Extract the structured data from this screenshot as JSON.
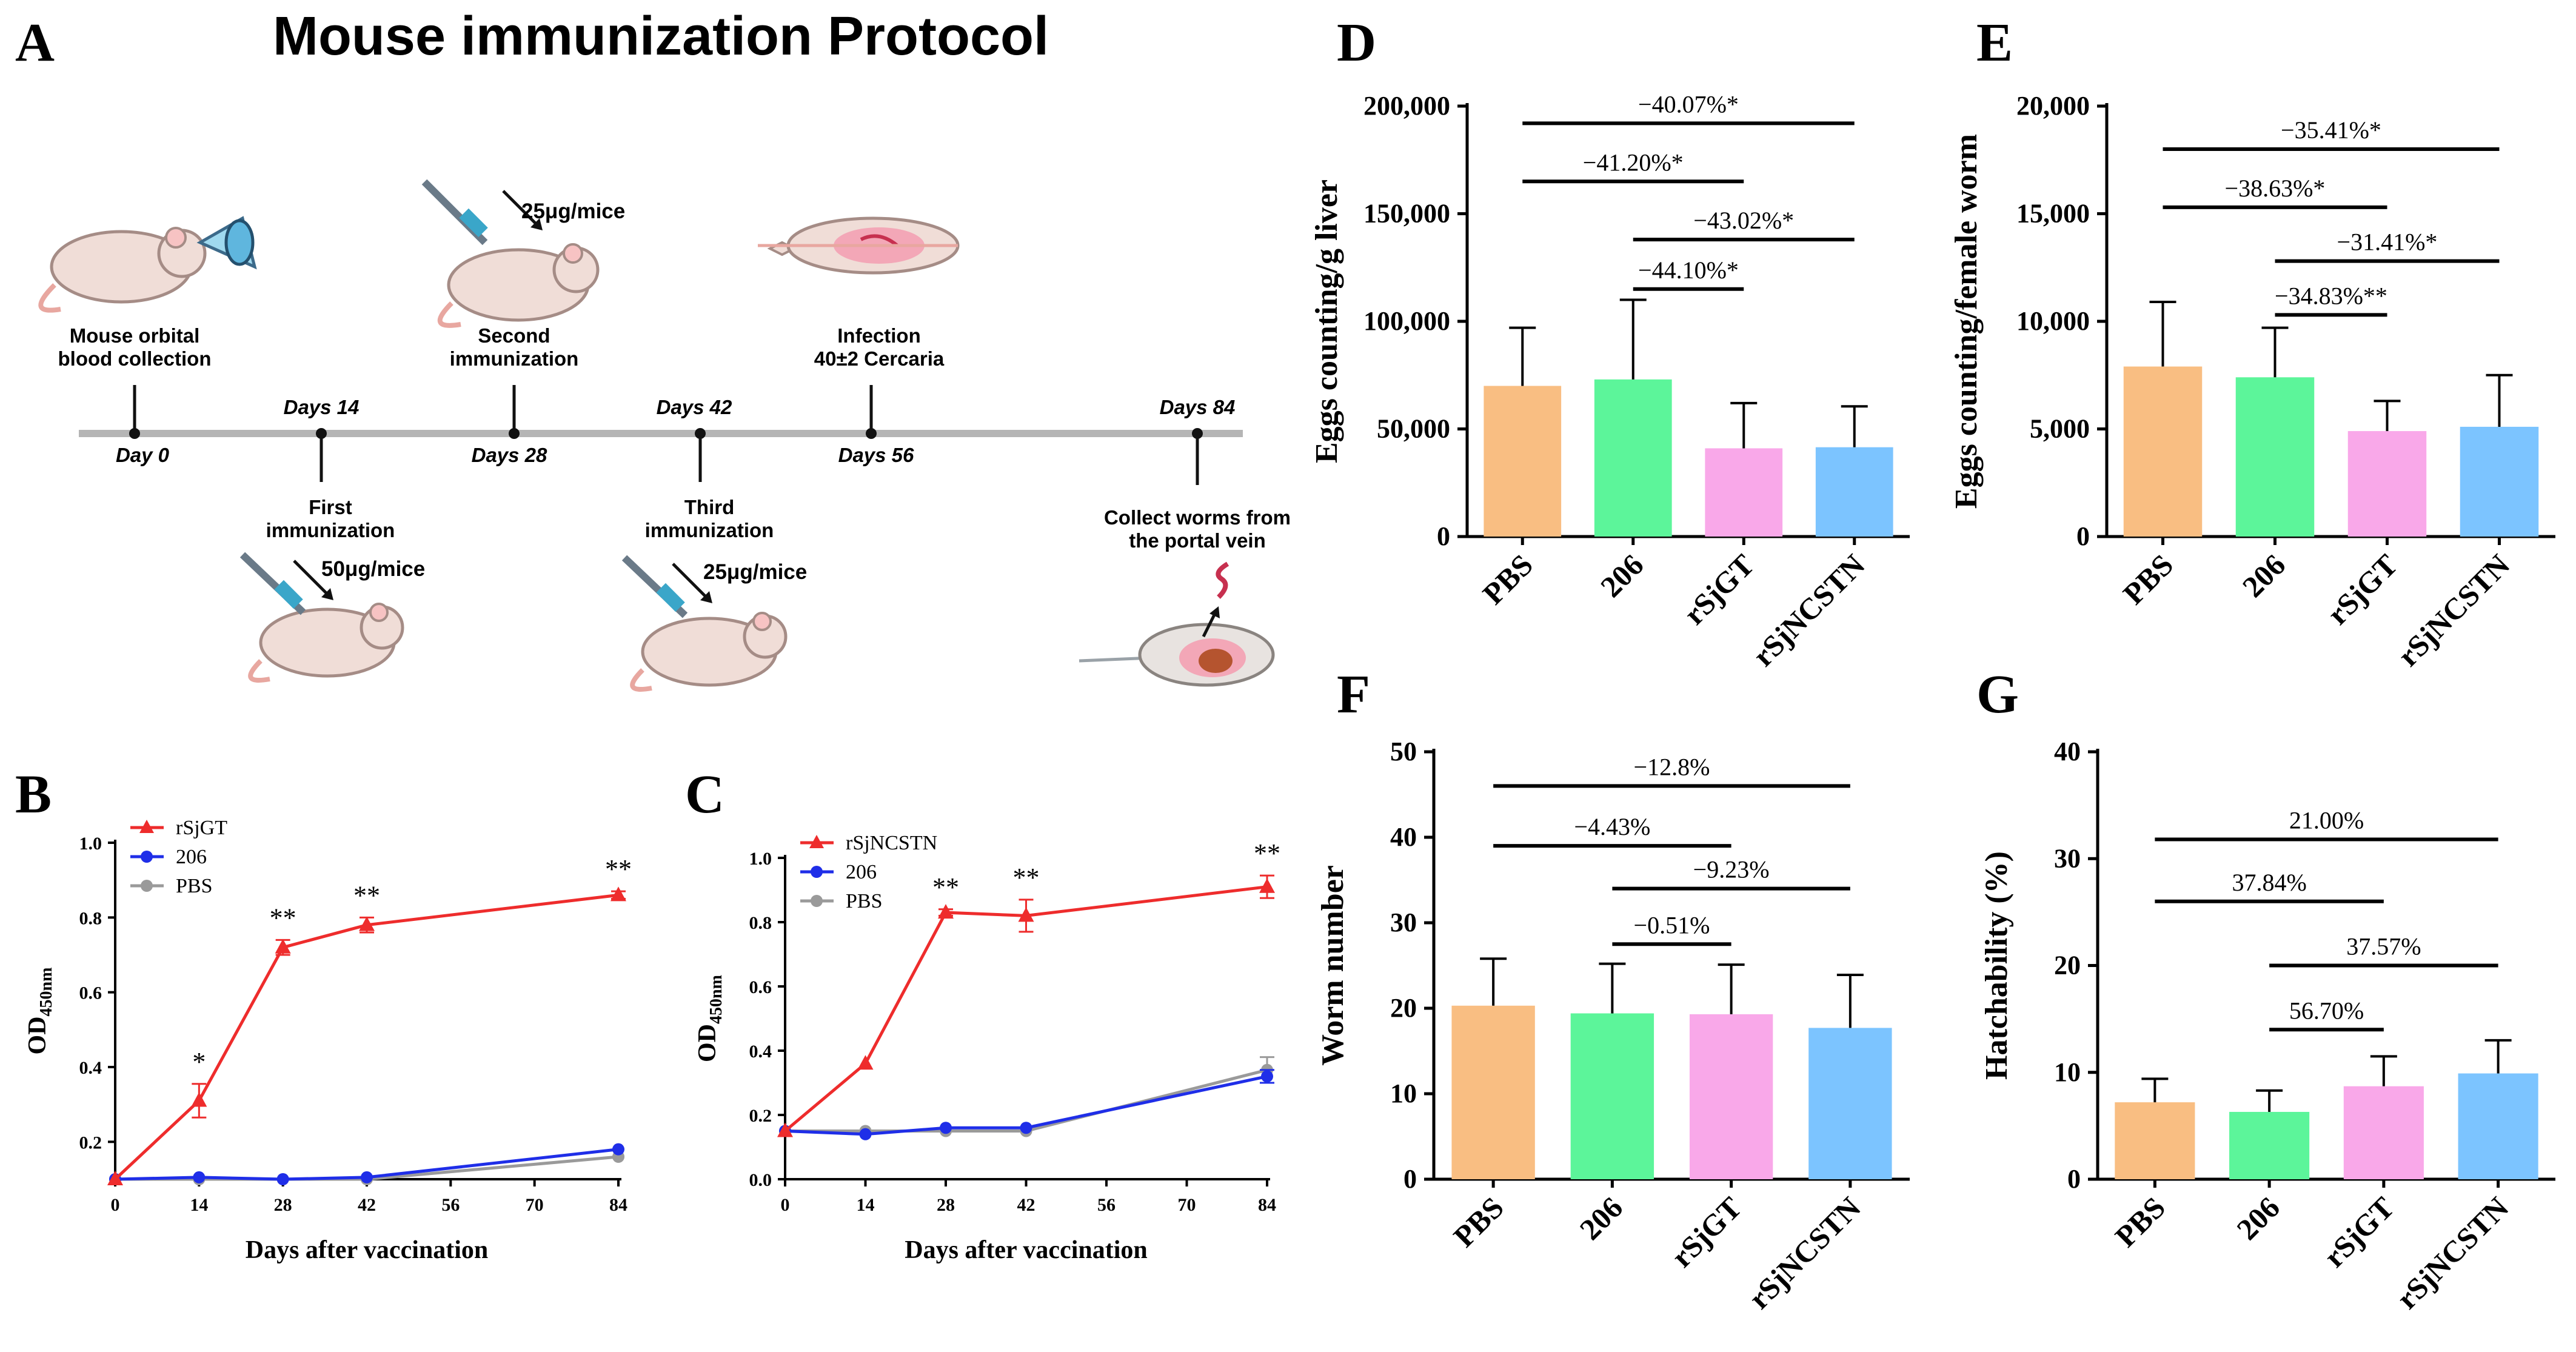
{
  "panels": {
    "A": {
      "label": "A",
      "title": "Mouse immunization Protocol",
      "timeline": {
        "ticks": [
          "Day 0",
          "Days 14",
          "Days 28",
          "Days 42",
          "Days 56",
          "Days 84"
        ],
        "events": [
          {
            "day": "Day 0",
            "text": [
              "Mouse orbital",
              "blood collection"
            ]
          },
          {
            "day": "Days 14",
            "text": [
              "First",
              "immunization"
            ],
            "dose": "50μg/mice"
          },
          {
            "day": "Days 28",
            "text": [
              "Second",
              "immunization"
            ],
            "dose": "25μg/mice"
          },
          {
            "day": "Days 42",
            "text": [
              "Third",
              "immunization"
            ],
            "dose": "25μg/mice"
          },
          {
            "day": "Days 56",
            "text": [
              "Infection",
              "40±2 Cercaria"
            ]
          },
          {
            "day": "Days 84",
            "text": [
              "Collect worms from",
              "the portal vein"
            ]
          }
        ]
      }
    }
  },
  "colors": {
    "red": "#ee2c2c",
    "blue": "#1f2ee8",
    "gray": "#9a9a9a",
    "orange": "#f9be82",
    "green": "#5cf59a",
    "pink": "#f9a8e9",
    "lightblue": "#7cc4ff"
  },
  "chart_data": [
    {
      "panel": "B",
      "type": "line",
      "xlabel": "Days after vaccination",
      "ylabel": "OD450nm",
      "x": [
        0,
        14,
        28,
        42,
        84
      ],
      "xticks": [
        0,
        14,
        28,
        42,
        56,
        70,
        84
      ],
      "yticks": [
        0.2,
        0.4,
        0.6,
        0.8,
        1.0
      ],
      "ylim": [
        0.1,
        1.0
      ],
      "series": [
        {
          "name": "rSjGT",
          "color": "red",
          "marker": "triangle",
          "values": [
            0.1,
            0.31,
            0.72,
            0.78,
            0.86
          ],
          "err": [
            0,
            0.045,
            0.02,
            0.02,
            0.01
          ]
        },
        {
          "name": "206",
          "color": "blue",
          "marker": "circle",
          "values": [
            0.1,
            0.105,
            0.1,
            0.105,
            0.18
          ],
          "err": [
            0,
            0,
            0,
            0,
            0
          ]
        },
        {
          "name": "PBS",
          "color": "gray",
          "marker": "circle",
          "values": [
            0.1,
            0.1,
            0.1,
            0.1,
            0.16
          ],
          "err": [
            0,
            0,
            0,
            0,
            0
          ]
        }
      ],
      "annotations": [
        {
          "x": 14,
          "text": "*"
        },
        {
          "x": 28,
          "text": "**"
        },
        {
          "x": 42,
          "text": "**"
        },
        {
          "x": 84,
          "text": "**"
        }
      ]
    },
    {
      "panel": "C",
      "type": "line",
      "xlabel": "Days after vaccination",
      "ylabel": "OD450nm",
      "x": [
        0,
        14,
        28,
        42,
        84
      ],
      "xticks": [
        0,
        14,
        28,
        42,
        56,
        70,
        84
      ],
      "yticks": [
        0.0,
        0.2,
        0.4,
        0.6,
        0.8,
        1.0
      ],
      "ylim": [
        0.0,
        1.0
      ],
      "series": [
        {
          "name": "rSjNCSTN",
          "color": "red",
          "marker": "triangle",
          "values": [
            0.15,
            0.36,
            0.83,
            0.82,
            0.91
          ],
          "err": [
            0,
            0,
            0.01,
            0.05,
            0.035
          ]
        },
        {
          "name": "206",
          "color": "blue",
          "marker": "circle",
          "values": [
            0.15,
            0.14,
            0.16,
            0.16,
            0.32
          ],
          "err": [
            0,
            0,
            0,
            0,
            0.02
          ]
        },
        {
          "name": "PBS",
          "color": "gray",
          "marker": "circle",
          "values": [
            0.15,
            0.15,
            0.15,
            0.15,
            0.34
          ],
          "err": [
            0,
            0,
            0,
            0,
            0.04
          ]
        }
      ],
      "annotations": [
        {
          "x": 28,
          "text": "**"
        },
        {
          "x": 42,
          "text": "**"
        },
        {
          "x": 84,
          "text": "**"
        }
      ]
    },
    {
      "panel": "D",
      "type": "bar",
      "ylabel": "Eggs counting/g liver",
      "categories": [
        "PBS",
        "206",
        "rSjGT",
        "rSjNCSTN"
      ],
      "values": [
        70000,
        73000,
        41000,
        41500
      ],
      "errors": [
        27000,
        37000,
        21000,
        19000
      ],
      "bar_colors": [
        "orange",
        "green",
        "pink",
        "lightblue"
      ],
      "yticks": [
        0,
        50000,
        100000,
        150000,
        200000
      ],
      "yticklabels": [
        "0",
        "50,000",
        "100,000",
        "150,000",
        "200,000"
      ],
      "ylim": [
        0,
        200000
      ],
      "brackets": [
        {
          "from": 0,
          "to": 3,
          "text": "−40.07%*",
          "y": 192000
        },
        {
          "from": 0,
          "to": 2,
          "text": "−41.20%*",
          "y": 165000
        },
        {
          "from": 1,
          "to": 3,
          "text": "−43.02%*",
          "y": 138000
        },
        {
          "from": 1,
          "to": 2,
          "text": "−44.10%*",
          "y": 115000
        }
      ]
    },
    {
      "panel": "E",
      "type": "bar",
      "ylabel": "Eggs counting/female worm",
      "categories": [
        "PBS",
        "206",
        "rSjGT",
        "rSjNCSTN"
      ],
      "values": [
        7900,
        7400,
        4900,
        5100
      ],
      "errors": [
        3000,
        2300,
        1400,
        2400
      ],
      "bar_colors": [
        "orange",
        "green",
        "pink",
        "lightblue"
      ],
      "yticks": [
        0,
        5000,
        10000,
        15000,
        20000
      ],
      "yticklabels": [
        "0",
        "5,000",
        "10,000",
        "15,000",
        "20,000"
      ],
      "ylim": [
        0,
        20000
      ],
      "brackets": [
        {
          "from": 0,
          "to": 3,
          "text": "−35.41%*",
          "y": 18000
        },
        {
          "from": 0,
          "to": 2,
          "text": "−38.63%*",
          "y": 15300
        },
        {
          "from": 1,
          "to": 3,
          "text": "−31.41%*",
          "y": 12800
        },
        {
          "from": 1,
          "to": 2,
          "text": "−34.83%**",
          "y": 10300
        }
      ]
    },
    {
      "panel": "F",
      "type": "bar",
      "ylabel": "Worm number",
      "categories": [
        "PBS",
        "206",
        "rSjGT",
        "rSjNCSTN"
      ],
      "values": [
        20.3,
        19.4,
        19.3,
        17.7
      ],
      "errors": [
        5.5,
        5.8,
        5.8,
        6.2
      ],
      "bar_colors": [
        "orange",
        "green",
        "pink",
        "lightblue"
      ],
      "yticks": [
        0,
        10,
        20,
        30,
        40,
        50
      ],
      "yticklabels": [
        "0",
        "10",
        "20",
        "30",
        "40",
        "50"
      ],
      "ylim": [
        0,
        50
      ],
      "brackets": [
        {
          "from": 0,
          "to": 3,
          "text": "−12.8%",
          "y": 46
        },
        {
          "from": 0,
          "to": 2,
          "text": "−4.43%",
          "y": 39
        },
        {
          "from": 1,
          "to": 3,
          "text": "−9.23%",
          "y": 34
        },
        {
          "from": 1,
          "to": 2,
          "text": "−0.51%",
          "y": 27.5
        }
      ]
    },
    {
      "panel": "G",
      "type": "bar",
      "ylabel": "Hatchability (%)",
      "categories": [
        "PBS",
        "206",
        "rSjGT",
        "rSjNCSTN"
      ],
      "values": [
        7.2,
        6.3,
        8.7,
        9.9
      ],
      "errors": [
        2.2,
        2.0,
        2.8,
        3.1
      ],
      "bar_colors": [
        "orange",
        "green",
        "pink",
        "lightblue"
      ],
      "yticks": [
        0,
        10,
        20,
        30,
        40
      ],
      "yticklabels": [
        "0",
        "10",
        "20",
        "30",
        "40"
      ],
      "ylim": [
        0,
        40
      ],
      "brackets": [
        {
          "from": 0,
          "to": 3,
          "text": "21.00%",
          "y": 31.8
        },
        {
          "from": 0,
          "to": 2,
          "text": "37.84%",
          "y": 26
        },
        {
          "from": 1,
          "to": 3,
          "text": "37.57%",
          "y": 20
        },
        {
          "from": 1,
          "to": 2,
          "text": "56.70%",
          "y": 14
        }
      ]
    }
  ]
}
